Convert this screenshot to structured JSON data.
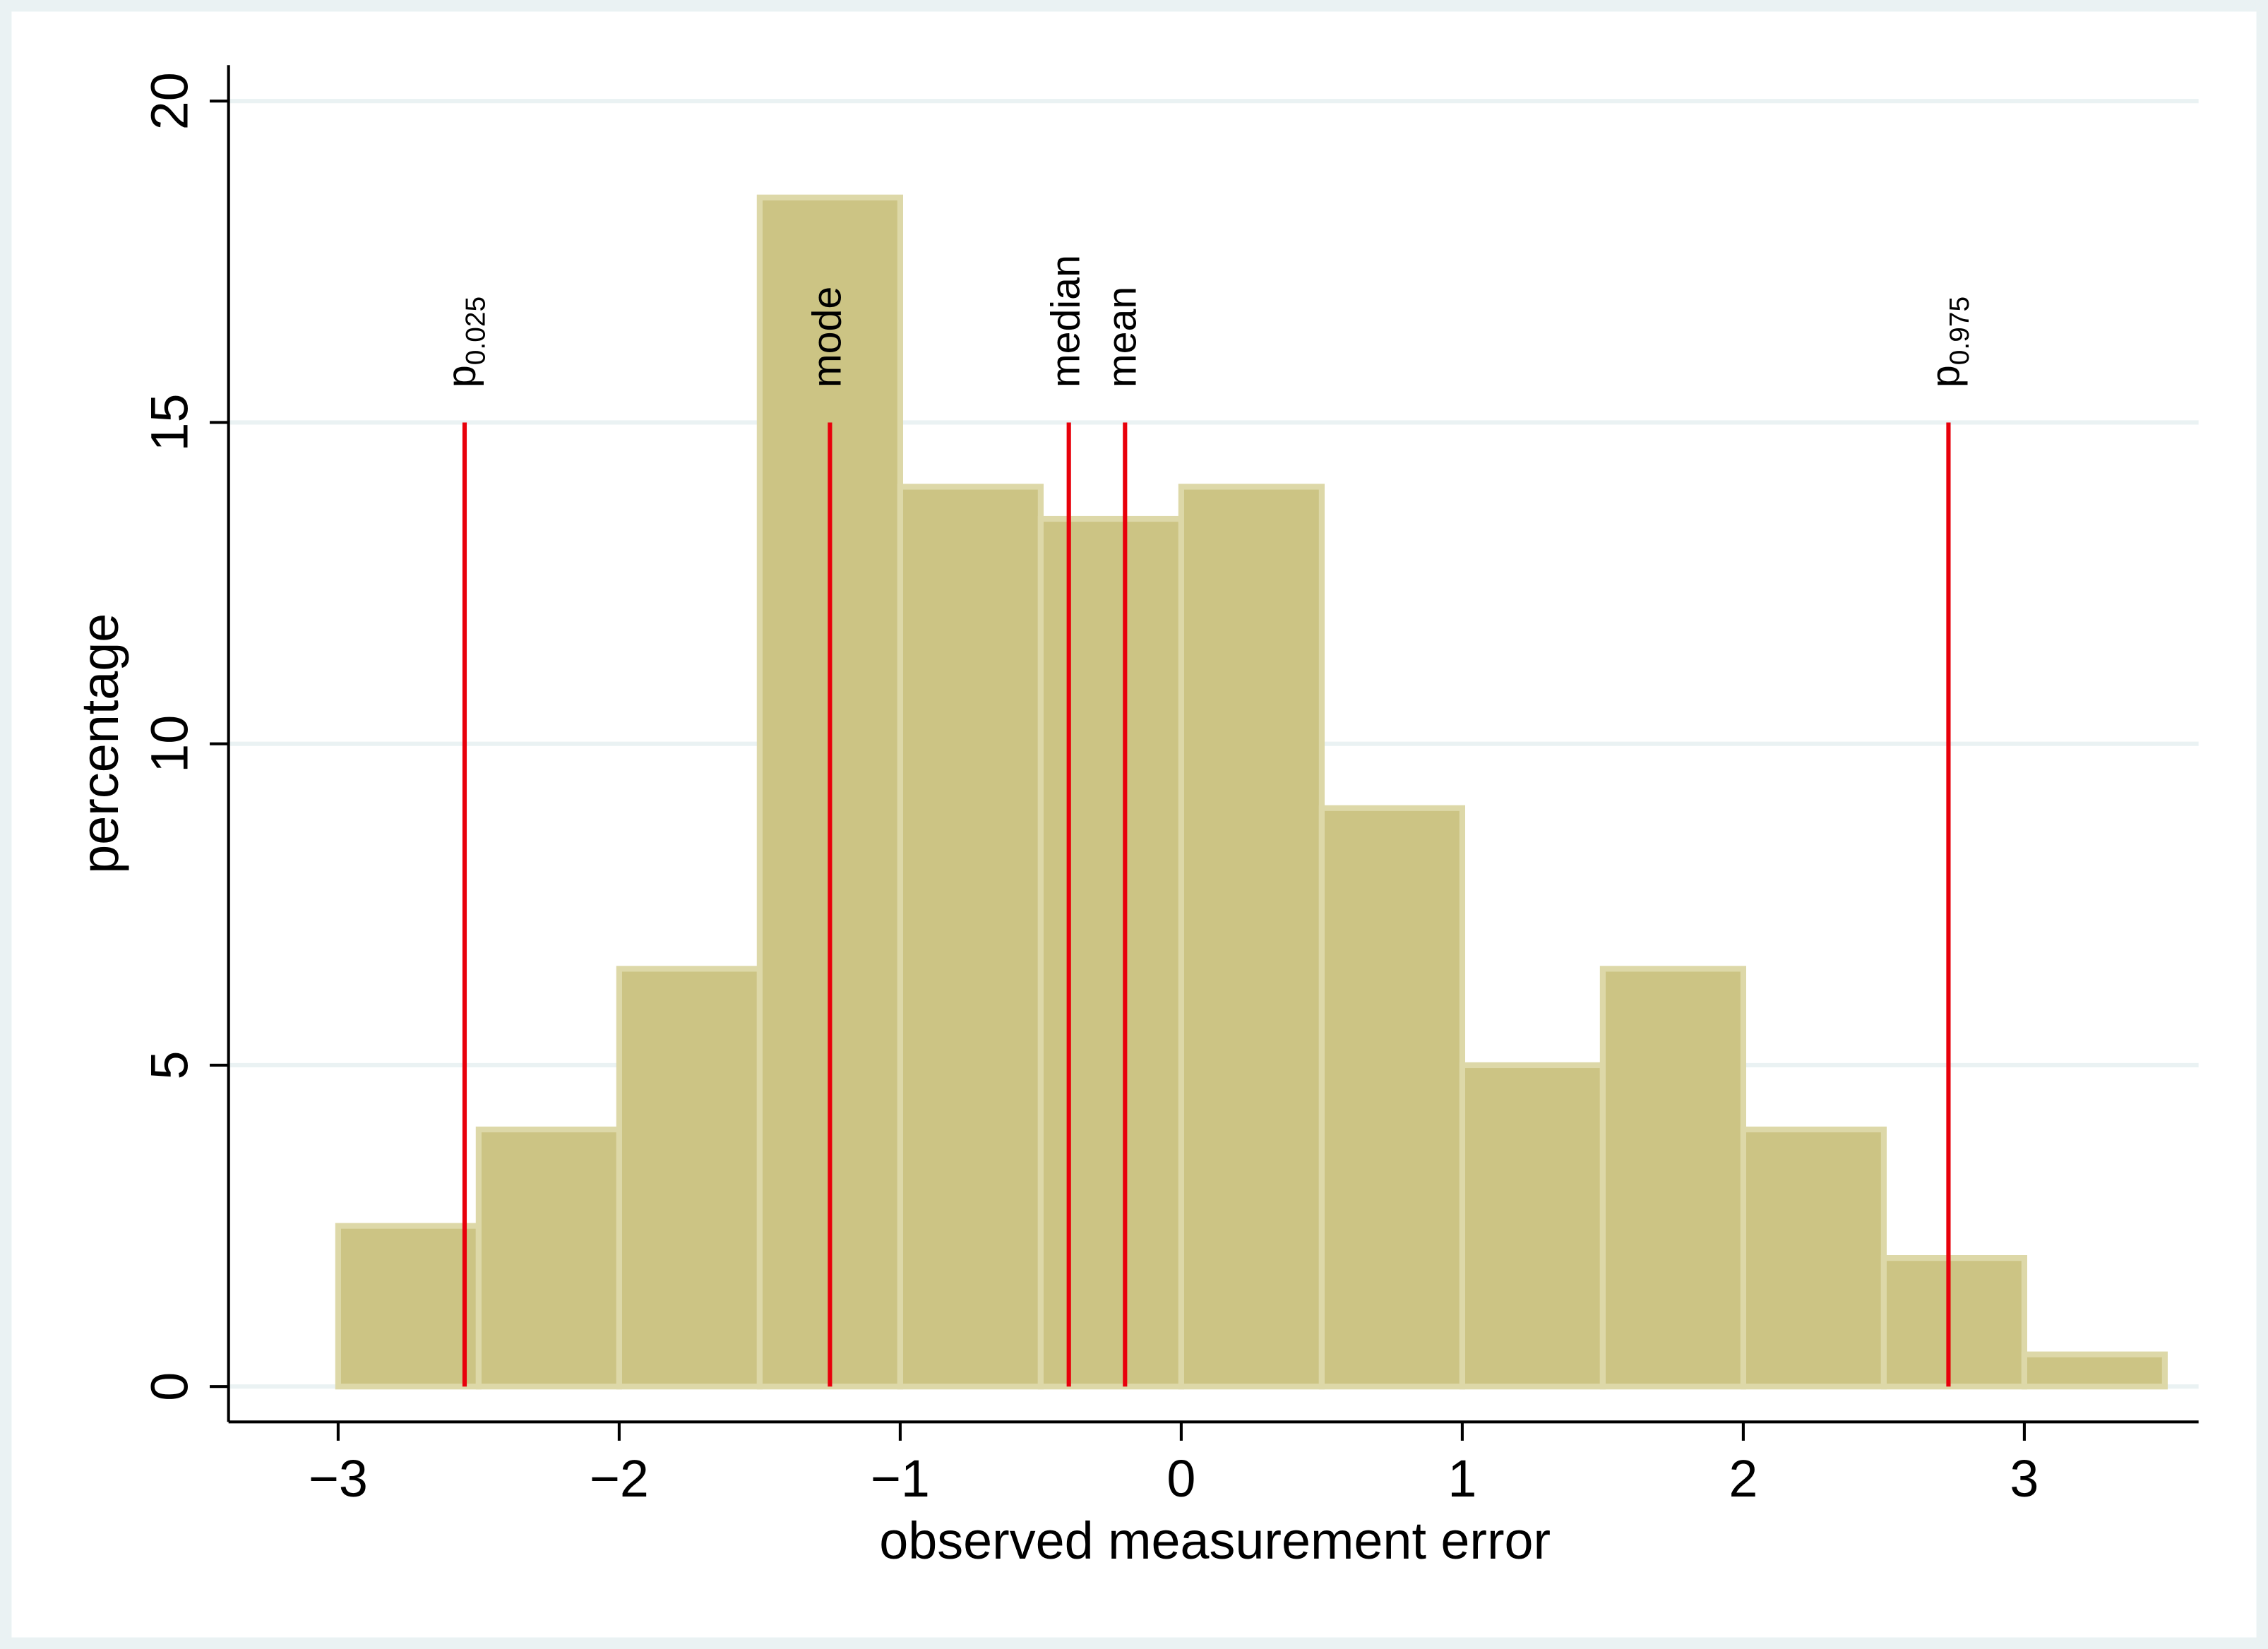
{
  "chart_data": {
    "type": "histogram",
    "xlabel": "observed measurement error",
    "ylabel": "percentage",
    "bins": [
      -3,
      -2.5,
      -2,
      -1.5,
      -1,
      -0.5,
      0,
      0.5,
      1,
      1.5,
      2,
      2.5,
      3,
      3.5
    ],
    "values": [
      2.5,
      4,
      6.5,
      18.5,
      14,
      13.5,
      14,
      9,
      5,
      6.5,
      4,
      2,
      0.5
    ],
    "color": "#ccc484",
    "edgecolor": "#ddd8a8",
    "xlim": [
      -3.39,
      3.62
    ],
    "ylim": [
      -0.55,
      20.56
    ],
    "xticks": [
      {
        "value": -3,
        "label": "−3"
      },
      {
        "value": -2,
        "label": "−2"
      },
      {
        "value": -1,
        "label": "−1"
      },
      0,
      1,
      2,
      3
    ],
    "yticks": [
      0,
      5,
      10,
      15,
      20
    ],
    "grid": true,
    "line_color": "#e8000b",
    "annotations": [
      {
        "x": -2.55,
        "y": 15,
        "label": "p",
        "subscript": "0.025"
      },
      {
        "x": -1.25,
        "y": 15,
        "label": "mode"
      },
      {
        "x": -0.4,
        "y": 15,
        "label": "median"
      },
      {
        "x": -0.2,
        "y": 15,
        "label": "mean"
      },
      {
        "x": 2.73,
        "y": 15,
        "label": "p",
        "subscript": "0.975"
      }
    ]
  }
}
